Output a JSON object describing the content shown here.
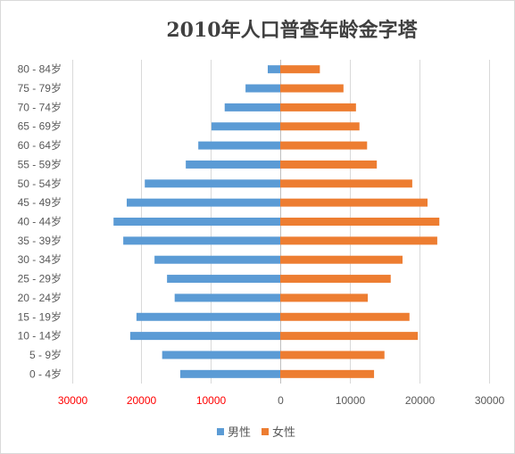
{
  "chart_data": {
    "type": "bar",
    "orientation": "horizontal",
    "title": "2010年人口普查年龄金字塔",
    "categories": [
      "0 - 4岁",
      "5 - 9岁",
      "10 - 14岁",
      "15 - 19岁",
      "20 - 24岁",
      "25 - 29岁",
      "30 - 34岁",
      "35 - 39岁",
      "40 - 44岁",
      "45 - 49岁",
      "50 - 54岁",
      "55 - 59岁",
      "60 - 64岁",
      "65 - 69岁",
      "70 - 74岁",
      "75 - 79岁",
      "80 - 84岁"
    ],
    "series": [
      {
        "name": "男性",
        "side": "left",
        "color": "#5B9BD5",
        "values": [
          14400,
          17000,
          21600,
          20700,
          15200,
          16300,
          18100,
          22600,
          24000,
          22100,
          19500,
          13600,
          11800,
          9900,
          8000,
          5000,
          1800
        ]
      },
      {
        "name": "女性",
        "side": "right",
        "color": "#ED7D31",
        "values": [
          13500,
          15000,
          19800,
          18600,
          12600,
          15900,
          17600,
          22600,
          22900,
          21200,
          19000,
          13900,
          12500,
          11400,
          10900,
          9100,
          5700
        ]
      }
    ],
    "x_ticks": [
      "30000",
      "20000",
      "10000",
      "0",
      "10000",
      "20000",
      "30000"
    ],
    "x_tick_values": [
      -30000,
      -20000,
      -10000,
      0,
      10000,
      20000,
      30000
    ],
    "x_max": 30000,
    "left_tick_color": "#FF0000",
    "grid": true,
    "legend": "bottom"
  }
}
